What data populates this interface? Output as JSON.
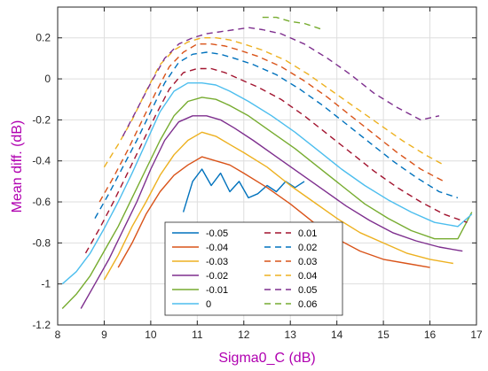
{
  "chart_data": {
    "type": "line",
    "xlabel": "Sigma0_C (dB)",
    "ylabel": "Mean diff. (dB)",
    "xlim": [
      8,
      17
    ],
    "ylim": [
      -1.2,
      0.35
    ],
    "xticks": [
      8,
      9,
      10,
      11,
      12,
      13,
      14,
      15,
      16,
      17
    ],
    "yticks": [
      -1.2,
      -1,
      -0.8,
      -0.6,
      -0.4,
      -0.2,
      0,
      0.2
    ],
    "ytick_labels": [
      "-1.2",
      "-1",
      "-0.8",
      "-0.6",
      "-0.4",
      "-0.2",
      "0",
      "0.2"
    ],
    "grid": true,
    "legend_position": "bottom-center",
    "series": [
      {
        "name": "-0.05",
        "color": "#0072bd",
        "dash": "solid",
        "x": [
          10.7,
          10.9,
          11.1,
          11.3,
          11.5,
          11.7,
          11.9,
          12.1,
          12.3,
          12.5,
          12.7,
          12.9,
          13.1,
          13.3
        ],
        "y": [
          -0.65,
          -0.5,
          -0.44,
          -0.52,
          -0.46,
          -0.55,
          -0.5,
          -0.58,
          -0.56,
          -0.52,
          -0.55,
          -0.5,
          -0.53,
          -0.5
        ]
      },
      {
        "name": "-0.04",
        "color": "#d95319",
        "dash": "solid",
        "x": [
          9.3,
          9.6,
          9.9,
          10.2,
          10.5,
          10.8,
          11.1,
          11.4,
          11.7,
          12.0,
          12.5,
          13.0,
          13.5,
          14.0,
          14.5,
          15.0,
          15.5,
          16.0
        ],
        "y": [
          -0.92,
          -0.8,
          -0.66,
          -0.55,
          -0.47,
          -0.42,
          -0.38,
          -0.4,
          -0.42,
          -0.46,
          -0.53,
          -0.61,
          -0.7,
          -0.78,
          -0.84,
          -0.88,
          -0.9,
          -0.92
        ]
      },
      {
        "name": "-0.03",
        "color": "#edb120",
        "dash": "solid",
        "x": [
          9.0,
          9.3,
          9.6,
          9.9,
          10.2,
          10.5,
          10.8,
          11.1,
          11.4,
          11.7,
          12.0,
          12.5,
          13.0,
          13.5,
          14.0,
          14.5,
          15.0,
          15.5,
          16.0,
          16.5
        ],
        "y": [
          -0.98,
          -0.86,
          -0.72,
          -0.6,
          -0.47,
          -0.37,
          -0.3,
          -0.26,
          -0.28,
          -0.32,
          -0.36,
          -0.43,
          -0.52,
          -0.6,
          -0.68,
          -0.75,
          -0.8,
          -0.85,
          -0.88,
          -0.9
        ]
      },
      {
        "name": "-0.02",
        "color": "#7e2f8e",
        "dash": "solid",
        "x": [
          8.5,
          8.8,
          9.1,
          9.4,
          9.7,
          10.0,
          10.3,
          10.6,
          10.9,
          11.2,
          11.5,
          11.8,
          12.2,
          12.7,
          13.2,
          13.7,
          14.2,
          14.7,
          15.2,
          15.7,
          16.2,
          16.7
        ],
        "y": [
          -1.12,
          -1.0,
          -0.88,
          -0.74,
          -0.6,
          -0.44,
          -0.3,
          -0.21,
          -0.18,
          -0.18,
          -0.2,
          -0.24,
          -0.3,
          -0.38,
          -0.46,
          -0.54,
          -0.62,
          -0.69,
          -0.75,
          -0.79,
          -0.82,
          -0.84
        ]
      },
      {
        "name": "-0.01",
        "color": "#77ac30",
        "dash": "solid",
        "x": [
          8.1,
          8.4,
          8.7,
          9.0,
          9.3,
          9.6,
          9.9,
          10.2,
          10.5,
          10.8,
          11.1,
          11.4,
          11.7,
          12.1,
          12.6,
          13.1,
          13.6,
          14.1,
          14.6,
          15.1,
          15.6,
          16.1,
          16.6,
          16.9
        ],
        "y": [
          -1.12,
          -1.05,
          -0.96,
          -0.84,
          -0.72,
          -0.58,
          -0.44,
          -0.3,
          -0.18,
          -0.11,
          -0.09,
          -0.1,
          -0.13,
          -0.18,
          -0.26,
          -0.34,
          -0.43,
          -0.52,
          -0.61,
          -0.68,
          -0.74,
          -0.78,
          -0.78,
          -0.65
        ]
      },
      {
        "name": "0",
        "color": "#4dbeee",
        "dash": "solid",
        "x": [
          8.1,
          8.4,
          8.7,
          9.0,
          9.3,
          9.6,
          9.9,
          10.2,
          10.5,
          10.8,
          11.1,
          11.4,
          11.7,
          12.1,
          12.6,
          13.1,
          13.6,
          14.1,
          14.6,
          15.1,
          15.6,
          16.1,
          16.6,
          16.9
        ],
        "y": [
          -1.0,
          -0.94,
          -0.85,
          -0.73,
          -0.6,
          -0.46,
          -0.31,
          -0.16,
          -0.06,
          -0.02,
          -0.02,
          -0.03,
          -0.06,
          -0.11,
          -0.18,
          -0.26,
          -0.35,
          -0.44,
          -0.52,
          -0.59,
          -0.65,
          -0.7,
          -0.72,
          -0.66
        ]
      },
      {
        "name": "0.01",
        "color": "#a2142f",
        "dash": "dashed",
        "x": [
          8.6,
          8.9,
          9.2,
          9.5,
          9.8,
          10.1,
          10.4,
          10.7,
          11.0,
          11.3,
          11.6,
          11.9,
          12.3,
          12.8,
          13.3,
          13.8,
          14.3,
          14.8,
          15.3,
          15.8,
          16.3,
          16.8
        ],
        "y": [
          -0.85,
          -0.73,
          -0.6,
          -0.46,
          -0.32,
          -0.18,
          -0.05,
          0.03,
          0.05,
          0.05,
          0.03,
          0.0,
          -0.04,
          -0.1,
          -0.18,
          -0.27,
          -0.36,
          -0.45,
          -0.53,
          -0.6,
          -0.66,
          -0.7
        ]
      },
      {
        "name": "0.02",
        "color": "#0072bd",
        "dash": "dashed",
        "x": [
          8.8,
          9.1,
          9.4,
          9.7,
          10.0,
          10.3,
          10.6,
          10.9,
          11.2,
          11.5,
          11.8,
          12.2,
          12.7,
          13.2,
          13.7,
          14.2,
          14.7,
          15.2,
          15.7,
          16.2,
          16.6
        ],
        "y": [
          -0.68,
          -0.56,
          -0.43,
          -0.3,
          -0.16,
          -0.02,
          0.08,
          0.12,
          0.13,
          0.12,
          0.1,
          0.07,
          0.02,
          -0.05,
          -0.13,
          -0.22,
          -0.31,
          -0.4,
          -0.48,
          -0.55,
          -0.58
        ]
      },
      {
        "name": "0.03",
        "color": "#d95319",
        "dash": "dashed",
        "x": [
          8.9,
          9.2,
          9.5,
          9.8,
          10.1,
          10.4,
          10.7,
          11.0,
          11.3,
          11.6,
          11.9,
          12.3,
          12.8,
          13.3,
          13.8,
          14.3,
          14.8,
          15.3,
          15.8,
          16.3
        ],
        "y": [
          -0.6,
          -0.48,
          -0.35,
          -0.21,
          -0.07,
          0.06,
          0.13,
          0.17,
          0.17,
          0.16,
          0.14,
          0.11,
          0.06,
          -0.01,
          -0.09,
          -0.18,
          -0.27,
          -0.36,
          -0.44,
          -0.5
        ]
      },
      {
        "name": "0.04",
        "color": "#edb120",
        "dash": "dashed",
        "x": [
          9.0,
          9.3,
          9.6,
          9.9,
          10.2,
          10.5,
          10.8,
          11.1,
          11.4,
          11.7,
          12.0,
          12.4,
          12.9,
          13.4,
          13.9,
          14.4,
          14.9,
          15.4,
          15.9,
          16.3
        ],
        "y": [
          -0.43,
          -0.32,
          -0.2,
          -0.06,
          0.07,
          0.14,
          0.18,
          0.2,
          0.2,
          0.19,
          0.17,
          0.14,
          0.09,
          0.02,
          -0.06,
          -0.14,
          -0.22,
          -0.3,
          -0.37,
          -0.42
        ]
      },
      {
        "name": "0.05",
        "color": "#7e2f8e",
        "dash": "dashed",
        "x": [
          9.4,
          9.7,
          10.0,
          10.3,
          10.6,
          10.9,
          11.2,
          11.5,
          11.8,
          12.1,
          12.4,
          12.8,
          13.3,
          13.8,
          14.3,
          14.8,
          15.3,
          15.8,
          16.2
        ],
        "y": [
          -0.28,
          -0.15,
          -0.02,
          0.1,
          0.17,
          0.2,
          0.22,
          0.23,
          0.24,
          0.25,
          0.24,
          0.22,
          0.17,
          0.1,
          0.02,
          -0.07,
          -0.14,
          -0.2,
          -0.18
        ]
      },
      {
        "name": "0.06",
        "color": "#77ac30",
        "dash": "dashed",
        "x": [
          12.4,
          12.7,
          13.0,
          13.3,
          13.7
        ],
        "y": [
          0.3,
          0.3,
          0.28,
          0.27,
          0.24
        ]
      }
    ]
  }
}
